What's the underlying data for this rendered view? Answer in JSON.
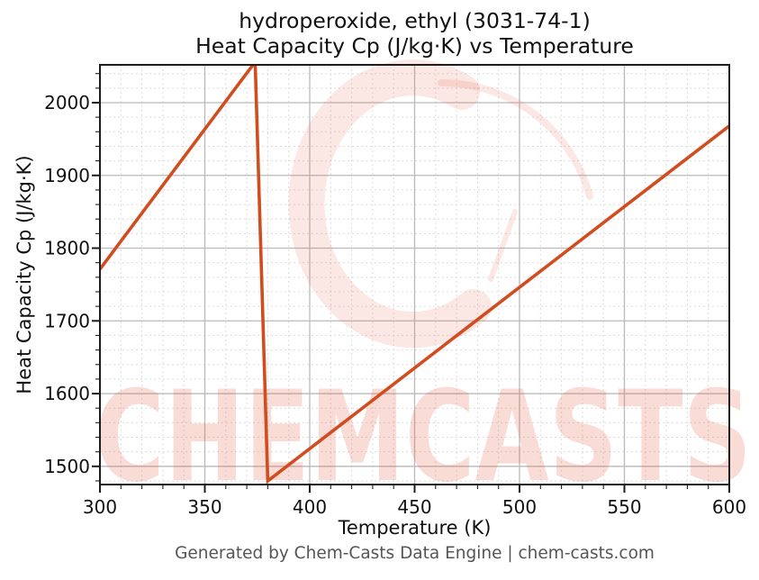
{
  "figure": {
    "title_line1": "hydroperoxide, ethyl (3031-74-1)",
    "title_line2": "Heat Capacity Cp (J/kg·K) vs Temperature",
    "footer": "Generated by Chem-Casts Data Engine | chem-casts.com"
  },
  "watermark": {
    "text": "CHEMCASTS",
    "color": "#e25e40",
    "text_opacity": 0.22,
    "logo_opacity": 0.15
  },
  "chart_data": {
    "type": "line",
    "title": "hydroperoxide, ethyl (3031-74-1) — Heat Capacity Cp (J/kg·K) vs Temperature",
    "xlabel": "Temperature (K)",
    "ylabel": "Heat Capacity Cp (J/kg·K)",
    "xlim": [
      300,
      600
    ],
    "ylim": [
      1475,
      2052
    ],
    "xticks": [
      300,
      350,
      400,
      450,
      500,
      550,
      600
    ],
    "yticks": [
      1500,
      1600,
      1700,
      1800,
      1900,
      2000
    ],
    "x_minor_step": 10,
    "y_minor_step": 20,
    "grid": true,
    "legend": "none",
    "line_color": "#d14d1f",
    "line_width": 3.6,
    "series": [
      {
        "name": "Heat Capacity Cp (J/kg·K)",
        "points": [
          [
            300,
            1771
          ],
          [
            374,
            2056
          ],
          [
            380,
            1480
          ],
          [
            600,
            1968
          ]
        ],
        "note": "piecewise linear; peak at ~374 K is clipped by the top of the axes (~2052); sharp phase-change drop to ~1480 at ~380 K, then linear rise to ~1968 at 600 K"
      }
    ]
  }
}
